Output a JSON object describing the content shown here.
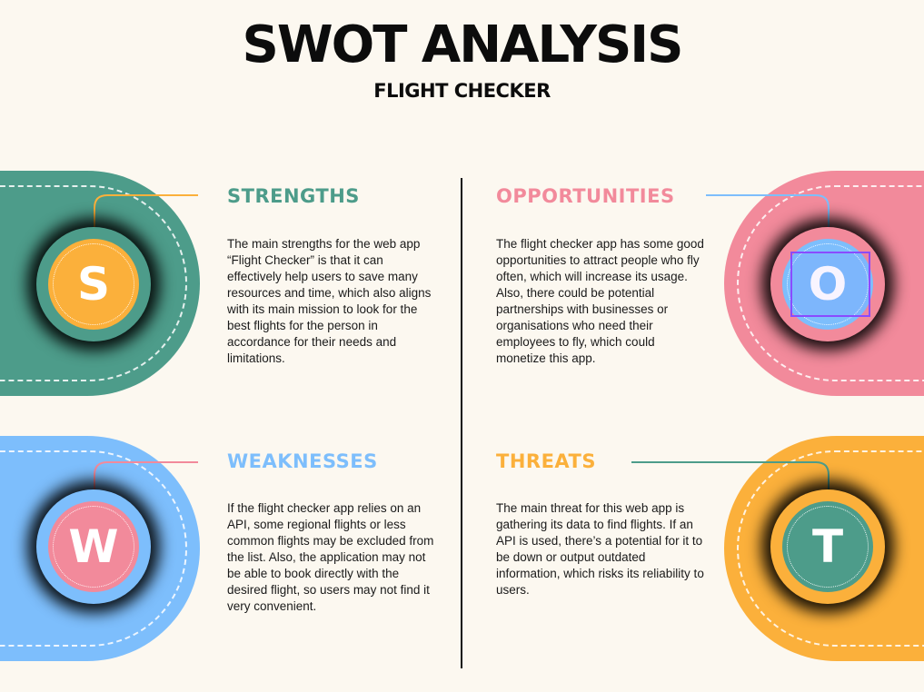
{
  "title": "SWOT ANALYSIS",
  "subtitle": "FLIGHT CHECKER",
  "colors": {
    "background": "#fcf8f0",
    "teal": "#4d9c8a",
    "pink": "#f28a9b",
    "blue": "#7dbefc",
    "orange": "#fbb03b"
  },
  "quadrants": {
    "strengths": {
      "letter": "S",
      "heading": "STRENGTHS",
      "text": "The main strengths for the web app “Flight Checker” is that it can effectively help users to save many resources and time, which also aligns with its main mission to look for the best flights for the person in accordance for their needs and limitations."
    },
    "opportunities": {
      "letter": "O",
      "heading": "OPPORTUNITIES",
      "text": "The flight checker app has some good opportunities to attract people who fly often, which will increase its usage. Also, there could be potential partnerships with businesses or organisations who need their employees to fly, which could monetize this app."
    },
    "weaknesses": {
      "letter": "W",
      "heading": "WEAKNESSES",
      "text": "If the flight checker app relies on an API, some regional flights or less common flights may be excluded from the list. Also, the application may not be able to book directly with the desired flight, so users may not find it very convenient."
    },
    "threats": {
      "letter": "T",
      "heading": "THREATS",
      "text": "The main threat for this web app is gathering its data to find flights. If an API is used, there’s a potential for it to be down or output outdated information, which risks its reliability to users."
    }
  }
}
